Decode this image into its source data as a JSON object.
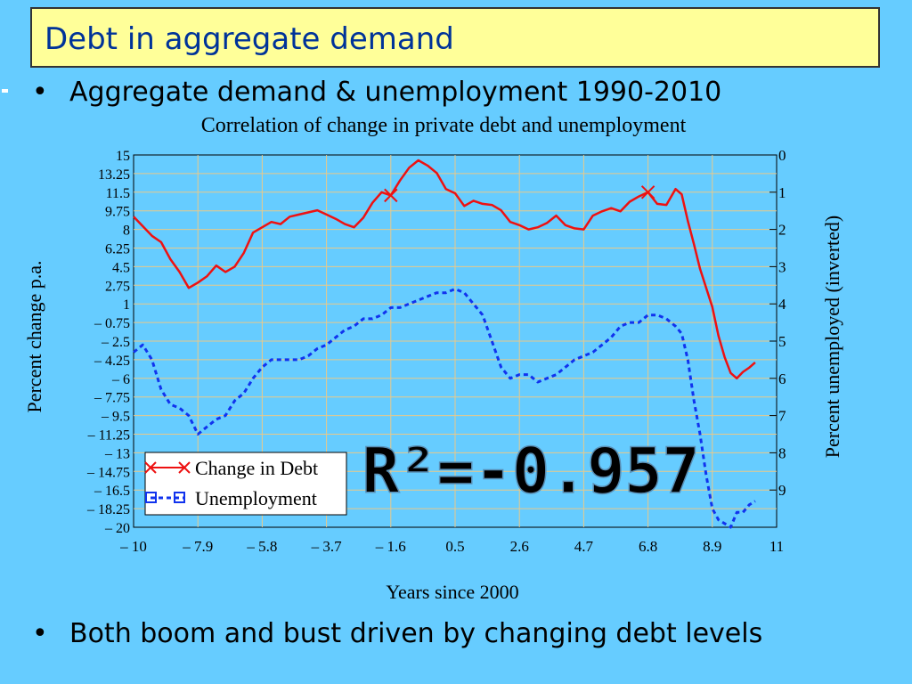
{
  "slide": {
    "title": "Debt in aggregate demand",
    "bullet1": "Aggregate demand & unemployment 1990-2010",
    "bullet2": "Both boom and bust driven by changing debt levels",
    "bullet_symbol": "•"
  },
  "colors": {
    "background": "#66ccff",
    "title_bg": "#ffff99",
    "title_text": "#003399",
    "debt": "#ee1111",
    "unemployment": "#1133ee",
    "r2_text": "#a8cfe8"
  },
  "chart_data": {
    "type": "line",
    "title": "Correlation of change in private debt and unemployment",
    "xlabel": "Years since 2000",
    "ylabel": "Percent change p.a.",
    "y2label": "Percent unemployed (inverted)",
    "xlim": [
      -10,
      11
    ],
    "ylim": [
      -20,
      15
    ],
    "y2lim": [
      0,
      10
    ],
    "y2_inverted": true,
    "grid": true,
    "x_ticks": [
      "– 10",
      "– 7.9",
      "– 5.8",
      "– 3.7",
      "– 1.6",
      "0.5",
      "2.6",
      "4.7",
      "6.8",
      "8.9",
      "11"
    ],
    "y_ticks": [
      "15",
      "13.25",
      "11.5",
      "9.75",
      "8",
      "6.25",
      "4.5",
      "2.75",
      "1",
      "– 0.75",
      "– 2.5",
      "– 4.25",
      "– 6",
      "– 7.75",
      "– 9.5",
      "– 11.25",
      "– 13",
      "– 14.75",
      "– 16.5",
      "– 18.25",
      "– 20"
    ],
    "y2_ticks": [
      "0",
      "1",
      "2",
      "3",
      "4",
      "5",
      "6",
      "7",
      "8",
      "9"
    ],
    "annotation": "R²=-0.957",
    "legend": {
      "placement": "bottom-left"
    },
    "series": [
      {
        "name": "Change in Debt",
        "axis": "left",
        "style": "solid",
        "marker": "x",
        "marked_points": [
          [
            -1.6,
            11.2
          ],
          [
            6.8,
            11.5
          ]
        ],
        "x": [
          -10,
          -9.7,
          -9.4,
          -9.1,
          -8.8,
          -8.5,
          -8.2,
          -7.9,
          -7.6,
          -7.3,
          -7.0,
          -6.7,
          -6.4,
          -6.1,
          -5.8,
          -5.5,
          -5.2,
          -4.9,
          -4.6,
          -4.3,
          -4.0,
          -3.7,
          -3.4,
          -3.1,
          -2.8,
          -2.5,
          -2.2,
          -1.9,
          -1.6,
          -1.3,
          -1.0,
          -0.7,
          -0.4,
          -0.1,
          0.2,
          0.5,
          0.8,
          1.1,
          1.4,
          1.7,
          2.0,
          2.3,
          2.6,
          2.9,
          3.2,
          3.5,
          3.8,
          4.1,
          4.4,
          4.7,
          5.0,
          5.3,
          5.6,
          5.9,
          6.2,
          6.5,
          6.8,
          7.1,
          7.4,
          7.7,
          7.9,
          8.1,
          8.3,
          8.5,
          8.7,
          8.9,
          9.1,
          9.3,
          9.5,
          9.7,
          9.9,
          10.1,
          10.3
        ],
        "values": [
          9.2,
          8.3,
          7.4,
          6.8,
          5.2,
          4.0,
          2.5,
          3.0,
          3.6,
          4.6,
          4.0,
          4.5,
          5.8,
          7.7,
          8.2,
          8.7,
          8.5,
          9.2,
          9.4,
          9.6,
          9.8,
          9.4,
          9.0,
          8.5,
          8.2,
          9.1,
          10.5,
          11.5,
          11.2,
          12.6,
          13.8,
          14.5,
          14.0,
          13.3,
          11.8,
          11.4,
          10.2,
          10.7,
          10.4,
          10.3,
          9.8,
          8.7,
          8.4,
          8.0,
          8.2,
          8.6,
          9.3,
          8.4,
          8.1,
          8.0,
          9.3,
          9.7,
          10.0,
          9.7,
          10.6,
          11.1,
          11.5,
          10.4,
          10.3,
          11.8,
          11.3,
          8.8,
          6.6,
          4.3,
          2.5,
          0.7,
          -2.0,
          -4.0,
          -5.5,
          -6.0,
          -5.4,
          -5.0,
          -4.5
        ]
      },
      {
        "name": "Unemployment",
        "axis": "right",
        "style": "dashed",
        "marker": "square",
        "x": [
          -10,
          -9.7,
          -9.4,
          -9.1,
          -8.8,
          -8.5,
          -8.2,
          -7.9,
          -7.6,
          -7.3,
          -7.0,
          -6.7,
          -6.4,
          -6.1,
          -5.8,
          -5.5,
          -5.2,
          -4.9,
          -4.6,
          -4.3,
          -4.0,
          -3.7,
          -3.4,
          -3.1,
          -2.8,
          -2.5,
          -2.2,
          -1.9,
          -1.6,
          -1.3,
          -1.0,
          -0.7,
          -0.4,
          -0.1,
          0.2,
          0.5,
          0.8,
          1.1,
          1.4,
          1.7,
          2.0,
          2.3,
          2.6,
          2.9,
          3.2,
          3.5,
          3.8,
          4.1,
          4.4,
          4.7,
          5.0,
          5.3,
          5.6,
          5.9,
          6.2,
          6.5,
          6.8,
          7.1,
          7.4,
          7.7,
          7.9,
          8.1,
          8.3,
          8.5,
          8.7,
          8.9,
          9.1,
          9.3,
          9.5,
          9.7,
          9.9,
          10.1,
          10.3
        ],
        "values": [
          5.3,
          5.1,
          5.5,
          6.3,
          6.7,
          6.8,
          7.0,
          7.5,
          7.3,
          7.1,
          7.0,
          6.6,
          6.4,
          6.0,
          5.7,
          5.5,
          5.5,
          5.5,
          5.5,
          5.4,
          5.2,
          5.1,
          4.9,
          4.7,
          4.6,
          4.4,
          4.4,
          4.3,
          4.1,
          4.1,
          4.0,
          3.9,
          3.8,
          3.7,
          3.7,
          3.6,
          3.7,
          4.0,
          4.3,
          5.0,
          5.7,
          6.0,
          5.9,
          5.9,
          6.1,
          6.0,
          5.9,
          5.7,
          5.5,
          5.4,
          5.3,
          5.1,
          4.9,
          4.6,
          4.5,
          4.5,
          4.3,
          4.3,
          4.4,
          4.6,
          4.8,
          5.5,
          6.6,
          7.5,
          8.6,
          9.5,
          9.8,
          9.9,
          10.0,
          9.6,
          9.6,
          9.4,
          9.3
        ]
      }
    ]
  }
}
